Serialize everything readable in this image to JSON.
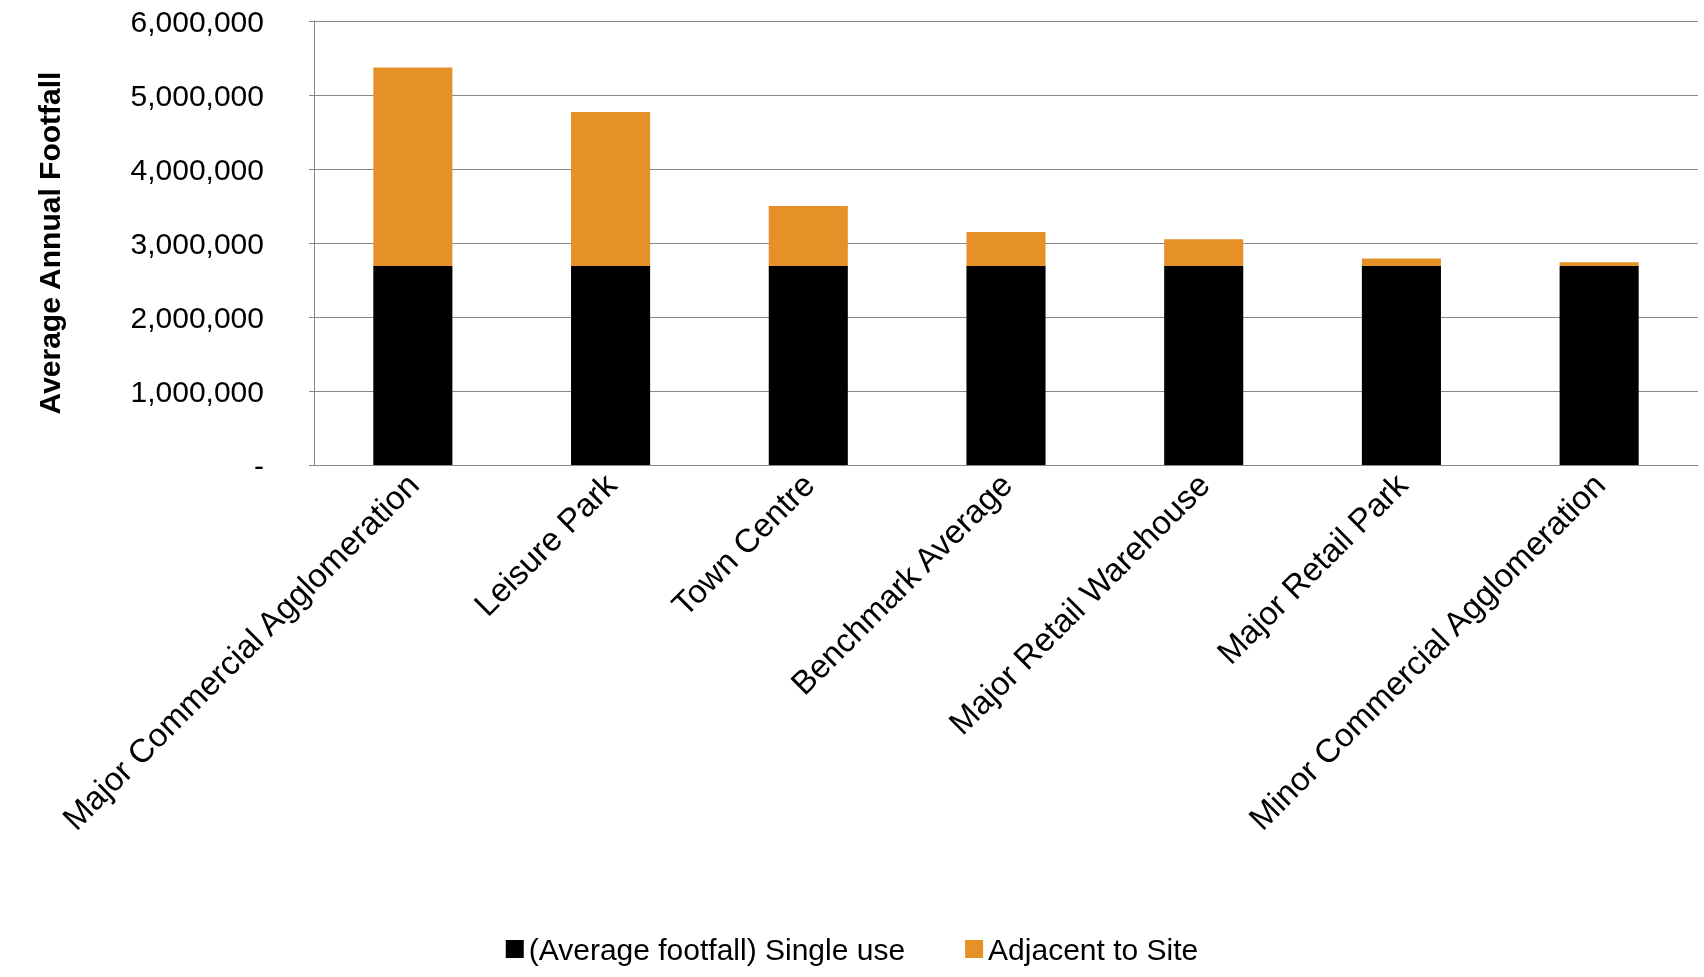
{
  "chart_data": {
    "type": "bar",
    "ylabel": "Average Annual Footfall",
    "stacked": true,
    "categories": [
      "Major Commercial Agglomeration",
      "Leisure Park",
      "Town Centre",
      "Benchmark Average",
      "Major Retail Warehouse",
      "Major Retail Park",
      "Minor Commercial Agglomeration"
    ],
    "series": [
      {
        "name": "(Average footfall) Single use",
        "color": "#000000",
        "values": [
          2690000,
          2690000,
          2690000,
          2690000,
          2690000,
          2690000,
          2690000
        ]
      },
      {
        "name": "Adjacent to Site",
        "color": "#e69028",
        "values": [
          2680000,
          2080000,
          810000,
          460000,
          360000,
          100000,
          50000
        ]
      }
    ],
    "ylim": [
      0,
      6000000
    ],
    "yticks": [
      {
        "value": 0,
        "label": "-"
      },
      {
        "value": 1000000,
        "label": "1,000,000"
      },
      {
        "value": 2000000,
        "label": "2,000,000"
      },
      {
        "value": 3000000,
        "label": "3,000,000"
      },
      {
        "value": 4000000,
        "label": "4,000,000"
      },
      {
        "value": 5000000,
        "label": "5,000,000"
      },
      {
        "value": 6000000,
        "label": "6,000,000"
      }
    ],
    "grid": "y",
    "legend": "bottom"
  }
}
